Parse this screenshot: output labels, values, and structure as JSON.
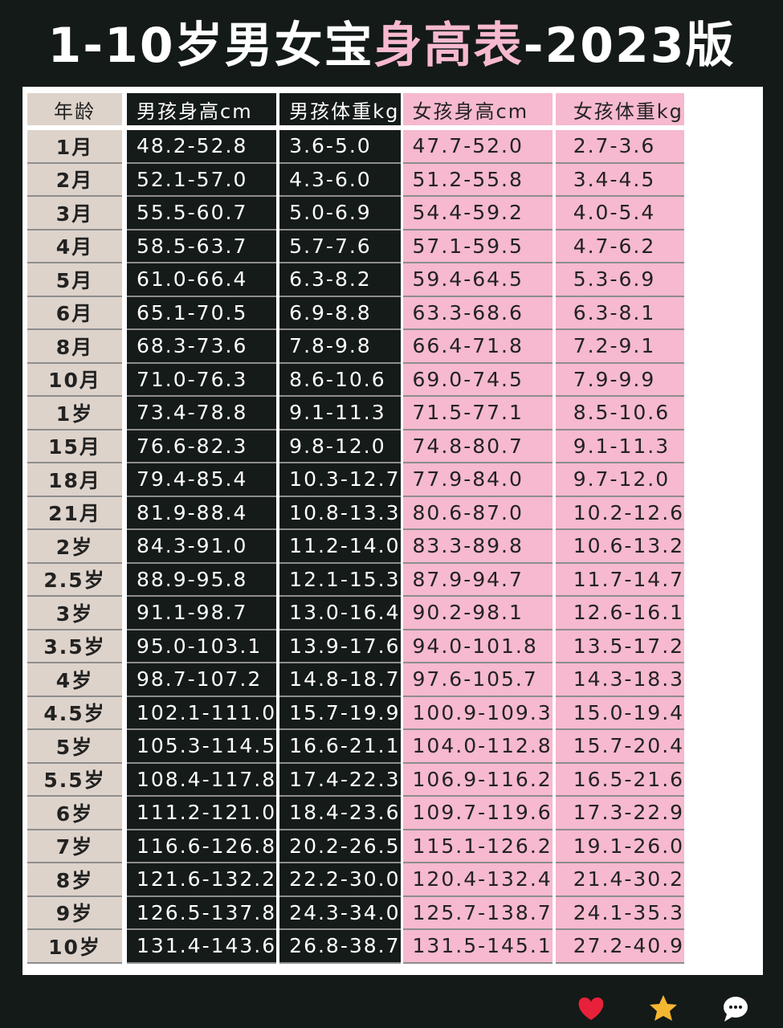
{
  "title": [
    "1-10岁男女宝",
    "身高表",
    "-2023版"
  ],
  "table": {
    "header": [
      "年龄",
      "男孩身高cm",
      "男孩体重kg",
      "女孩身高cm",
      "女孩体重kg"
    ],
    "rows": [
      [
        "1月",
        "48.2-52.8",
        "3.6-5.0",
        "47.7-52.0",
        "2.7-3.6"
      ],
      [
        "2月",
        "52.1-57.0",
        "4.3-6.0",
        "51.2-55.8",
        "3.4-4.5"
      ],
      [
        "3月",
        "55.5-60.7",
        "5.0-6.9",
        "54.4-59.2",
        "4.0-5.4"
      ],
      [
        "4月",
        "58.5-63.7",
        "5.7-7.6",
        "57.1-59.5",
        "4.7-6.2"
      ],
      [
        "5月",
        "61.0-66.4",
        "6.3-8.2",
        "59.4-64.5",
        "5.3-6.9"
      ],
      [
        "6月",
        "65.1-70.5",
        "6.9-8.8",
        "63.3-68.6",
        "6.3-8.1"
      ],
      [
        "8月",
        "68.3-73.6",
        "7.8-9.8",
        "66.4-71.8",
        "7.2-9.1"
      ],
      [
        "10月",
        "71.0-76.3",
        "8.6-10.6",
        "69.0-74.5",
        "7.9-9.9"
      ],
      [
        "1岁",
        "73.4-78.8",
        "9.1-11.3",
        "71.5-77.1",
        "8.5-10.6"
      ],
      [
        "15月",
        "76.6-82.3",
        "9.8-12.0",
        "74.8-80.7",
        "9.1-11.3"
      ],
      [
        "18月",
        "79.4-85.4",
        "10.3-12.7",
        "77.9-84.0",
        "9.7-12.0"
      ],
      [
        "21月",
        "81.9-88.4",
        "10.8-13.3",
        "80.6-87.0",
        "10.2-12.6"
      ],
      [
        "2岁",
        "84.3-91.0",
        "11.2-14.0",
        "83.3-89.8",
        "10.6-13.2"
      ],
      [
        "2.5岁",
        "88.9-95.8",
        "12.1-15.3",
        "87.9-94.7",
        "11.7-14.7"
      ],
      [
        "3岁",
        "91.1-98.7",
        "13.0-16.4",
        "90.2-98.1",
        "12.6-16.1"
      ],
      [
        "3.5岁",
        "95.0-103.1",
        "13.9-17.6",
        "94.0-101.8",
        "13.5-17.2"
      ],
      [
        "4岁",
        "98.7-107.2",
        "14.8-18.7",
        "97.6-105.7",
        "14.3-18.3"
      ],
      [
        "4.5岁",
        "102.1-111.0",
        "15.7-19.9",
        "100.9-109.3",
        "15.0-19.4"
      ],
      [
        "5岁",
        "105.3-114.5",
        "16.6-21.1",
        "104.0-112.8",
        "15.7-20.4"
      ],
      [
        "5.5岁",
        "108.4-117.8",
        "17.4-22.3",
        "106.9-116.2",
        "16.5-21.6"
      ],
      [
        "6岁",
        "111.2-121.0",
        "18.4-23.6",
        "109.7-119.6",
        "17.3-22.9"
      ],
      [
        "7岁",
        "116.6-126.8",
        "20.2-26.5",
        "115.1-126.2",
        "19.1-26.0"
      ],
      [
        "8岁",
        "121.6-132.2",
        "22.2-30.0",
        "120.4-132.4",
        "21.4-30.2"
      ],
      [
        "9岁",
        "126.5-137.8",
        "24.3-34.0",
        "125.7-138.7",
        "24.1-35.3"
      ],
      [
        "10岁",
        "131.4-143.6",
        "26.8-38.7",
        "131.5-145.1",
        "27.2-40.9"
      ]
    ]
  }
}
